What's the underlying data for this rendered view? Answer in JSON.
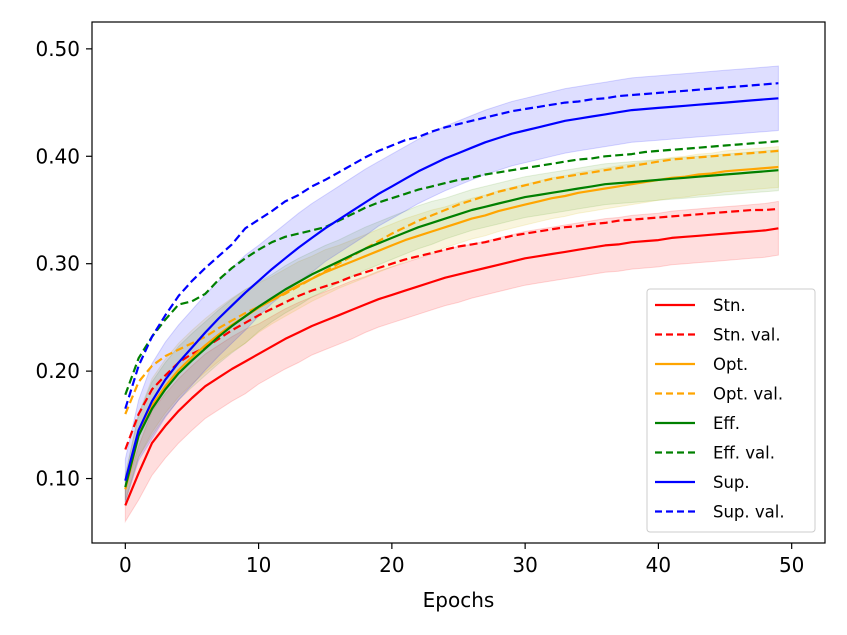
{
  "chart_data": {
    "type": "line",
    "title": "",
    "xlabel": "Epochs",
    "ylabel": "",
    "xlim": [
      -2.5,
      52.5
    ],
    "ylim": [
      0.04,
      0.525
    ],
    "x_ticks": [
      0,
      10,
      20,
      30,
      40,
      50
    ],
    "x_tick_labels": [
      "0",
      "10",
      "20",
      "30",
      "40",
      "50"
    ],
    "y_ticks": [
      0.1,
      0.2,
      0.3,
      0.4,
      0.5
    ],
    "y_tick_labels": [
      "0.10",
      "0.20",
      "0.30",
      "0.40",
      "0.50"
    ],
    "legend_position": "lower-right",
    "x": [
      0,
      1,
      2,
      3,
      4,
      5,
      6,
      7,
      8,
      9,
      10,
      11,
      12,
      13,
      14,
      15,
      16,
      17,
      18,
      19,
      20,
      21,
      22,
      23,
      24,
      25,
      26,
      27,
      28,
      29,
      30,
      31,
      32,
      33,
      34,
      35,
      36,
      37,
      38,
      39,
      40,
      41,
      42,
      43,
      44,
      45,
      46,
      47,
      48,
      49
    ],
    "series": [
      {
        "name": "Stn.",
        "color": "#ff0000",
        "dash": false,
        "band_color": "#ff0000",
        "values": [
          0.075,
          0.105,
          0.133,
          0.149,
          0.163,
          0.175,
          0.186,
          0.194,
          0.202,
          0.209,
          0.216,
          0.223,
          0.23,
          0.236,
          0.242,
          0.247,
          0.252,
          0.257,
          0.262,
          0.267,
          0.271,
          0.275,
          0.279,
          0.283,
          0.287,
          0.29,
          0.293,
          0.296,
          0.299,
          0.302,
          0.305,
          0.307,
          0.309,
          0.311,
          0.313,
          0.315,
          0.317,
          0.318,
          0.32,
          0.321,
          0.322,
          0.324,
          0.325,
          0.326,
          0.327,
          0.328,
          0.329,
          0.33,
          0.331,
          0.333
        ],
        "band": [
          0.015,
          0.025,
          0.03,
          0.03,
          0.03,
          0.03,
          0.03,
          0.03,
          0.03,
          0.03,
          0.028,
          0.028,
          0.028,
          0.028,
          0.027,
          0.027,
          0.027,
          0.027,
          0.026,
          0.026,
          0.026,
          0.026,
          0.026,
          0.026,
          0.026,
          0.026,
          0.025,
          0.025,
          0.025,
          0.025,
          0.025,
          0.025,
          0.025,
          0.025,
          0.025,
          0.025,
          0.025,
          0.025,
          0.025,
          0.025,
          0.025,
          0.025,
          0.025,
          0.025,
          0.025,
          0.025,
          0.025,
          0.025,
          0.025,
          0.025
        ]
      },
      {
        "name": "Stn. val.",
        "color": "#ff0000",
        "dash": true,
        "values": [
          0.127,
          0.16,
          0.183,
          0.196,
          0.208,
          0.216,
          0.222,
          0.23,
          0.238,
          0.245,
          0.252,
          0.258,
          0.264,
          0.27,
          0.275,
          0.279,
          0.283,
          0.288,
          0.292,
          0.296,
          0.3,
          0.304,
          0.307,
          0.31,
          0.313,
          0.316,
          0.318,
          0.32,
          0.323,
          0.326,
          0.328,
          0.33,
          0.332,
          0.334,
          0.335,
          0.337,
          0.338,
          0.34,
          0.341,
          0.342,
          0.343,
          0.344,
          0.345,
          0.346,
          0.347,
          0.348,
          0.349,
          0.35,
          0.35,
          0.351
        ]
      },
      {
        "name": "Opt.",
        "color": "#ffa500",
        "dash": false,
        "band_color": "#d4b400",
        "values": [
          0.09,
          0.14,
          0.168,
          0.186,
          0.201,
          0.213,
          0.224,
          0.234,
          0.243,
          0.251,
          0.259,
          0.266,
          0.273,
          0.28,
          0.286,
          0.292,
          0.297,
          0.302,
          0.307,
          0.312,
          0.317,
          0.322,
          0.326,
          0.33,
          0.334,
          0.338,
          0.342,
          0.345,
          0.349,
          0.352,
          0.355,
          0.358,
          0.361,
          0.363,
          0.366,
          0.368,
          0.37,
          0.372,
          0.374,
          0.376,
          0.378,
          0.38,
          0.381,
          0.383,
          0.384,
          0.386,
          0.387,
          0.388,
          0.389,
          0.39
        ],
        "band": [
          0.012,
          0.02,
          0.025,
          0.025,
          0.025,
          0.025,
          0.025,
          0.025,
          0.025,
          0.025,
          0.023,
          0.022,
          0.022,
          0.022,
          0.021,
          0.021,
          0.02,
          0.02,
          0.02,
          0.02,
          0.02,
          0.02,
          0.02,
          0.02,
          0.019,
          0.019,
          0.019,
          0.019,
          0.019,
          0.019,
          0.019,
          0.019,
          0.019,
          0.019,
          0.019,
          0.019,
          0.019,
          0.019,
          0.019,
          0.019,
          0.019,
          0.019,
          0.019,
          0.019,
          0.019,
          0.019,
          0.019,
          0.019,
          0.019,
          0.019
        ]
      },
      {
        "name": "Opt. val.",
        "color": "#ffa500",
        "dash": true,
        "values": [
          0.16,
          0.19,
          0.205,
          0.214,
          0.22,
          0.226,
          0.232,
          0.24,
          0.247,
          0.254,
          0.26,
          0.266,
          0.272,
          0.279,
          0.286,
          0.293,
          0.3,
          0.307,
          0.314,
          0.321,
          0.328,
          0.334,
          0.34,
          0.345,
          0.35,
          0.355,
          0.359,
          0.363,
          0.367,
          0.37,
          0.373,
          0.376,
          0.379,
          0.381,
          0.383,
          0.385,
          0.387,
          0.389,
          0.391,
          0.393,
          0.395,
          0.397,
          0.398,
          0.399,
          0.4,
          0.401,
          0.402,
          0.403,
          0.404,
          0.405
        ]
      },
      {
        "name": "Eff.",
        "color": "#008000",
        "dash": false,
        "band_color": "#5aa02a",
        "values": [
          0.092,
          0.14,
          0.165,
          0.183,
          0.198,
          0.21,
          0.221,
          0.232,
          0.242,
          0.251,
          0.26,
          0.268,
          0.276,
          0.283,
          0.29,
          0.296,
          0.302,
          0.308,
          0.314,
          0.319,
          0.324,
          0.329,
          0.334,
          0.338,
          0.342,
          0.346,
          0.35,
          0.353,
          0.356,
          0.359,
          0.362,
          0.364,
          0.366,
          0.368,
          0.37,
          0.372,
          0.374,
          0.375,
          0.376,
          0.377,
          0.378,
          0.379,
          0.38,
          0.381,
          0.382,
          0.383,
          0.384,
          0.385,
          0.386,
          0.387
        ],
        "band": [
          0.012,
          0.02,
          0.025,
          0.025,
          0.025,
          0.025,
          0.025,
          0.025,
          0.025,
          0.025,
          0.023,
          0.022,
          0.022,
          0.022,
          0.021,
          0.021,
          0.02,
          0.02,
          0.02,
          0.02,
          0.02,
          0.02,
          0.02,
          0.02,
          0.019,
          0.019,
          0.019,
          0.019,
          0.019,
          0.019,
          0.019,
          0.019,
          0.019,
          0.019,
          0.019,
          0.019,
          0.019,
          0.019,
          0.019,
          0.019,
          0.019,
          0.019,
          0.019,
          0.019,
          0.019,
          0.019,
          0.019,
          0.019,
          0.019,
          0.019
        ]
      },
      {
        "name": "Eff. val.",
        "color": "#008000",
        "dash": true,
        "values": [
          0.178,
          0.212,
          0.232,
          0.248,
          0.262,
          0.265,
          0.272,
          0.285,
          0.296,
          0.305,
          0.313,
          0.32,
          0.325,
          0.328,
          0.331,
          0.334,
          0.34,
          0.346,
          0.352,
          0.357,
          0.361,
          0.365,
          0.369,
          0.372,
          0.375,
          0.378,
          0.38,
          0.383,
          0.385,
          0.387,
          0.389,
          0.391,
          0.393,
          0.395,
          0.397,
          0.398,
          0.4,
          0.401,
          0.402,
          0.404,
          0.405,
          0.406,
          0.407,
          0.408,
          0.409,
          0.41,
          0.411,
          0.412,
          0.413,
          0.414
        ]
      },
      {
        "name": "Sup.",
        "color": "#0000ff",
        "dash": false,
        "band_color": "#0000ff",
        "values": [
          0.098,
          0.145,
          0.172,
          0.192,
          0.208,
          0.222,
          0.236,
          0.249,
          0.261,
          0.273,
          0.284,
          0.295,
          0.305,
          0.315,
          0.324,
          0.333,
          0.341,
          0.349,
          0.357,
          0.365,
          0.372,
          0.379,
          0.386,
          0.392,
          0.398,
          0.403,
          0.408,
          0.413,
          0.417,
          0.421,
          0.424,
          0.427,
          0.43,
          0.433,
          0.435,
          0.437,
          0.439,
          0.441,
          0.443,
          0.444,
          0.445,
          0.446,
          0.447,
          0.448,
          0.449,
          0.45,
          0.451,
          0.452,
          0.453,
          0.454
        ],
        "band": [
          0.02,
          0.028,
          0.035,
          0.035,
          0.035,
          0.035,
          0.035,
          0.035,
          0.035,
          0.035,
          0.033,
          0.032,
          0.032,
          0.032,
          0.032,
          0.031,
          0.031,
          0.031,
          0.031,
          0.03,
          0.03,
          0.03,
          0.03,
          0.03,
          0.03,
          0.03,
          0.03,
          0.03,
          0.03,
          0.03,
          0.03,
          0.03,
          0.03,
          0.03,
          0.03,
          0.03,
          0.03,
          0.03,
          0.03,
          0.03,
          0.03,
          0.03,
          0.03,
          0.03,
          0.03,
          0.03,
          0.03,
          0.03,
          0.03,
          0.03
        ]
      },
      {
        "name": "Sup. val.",
        "color": "#0000ff",
        "dash": true,
        "values": [
          0.165,
          0.205,
          0.232,
          0.252,
          0.27,
          0.284,
          0.296,
          0.307,
          0.318,
          0.333,
          0.341,
          0.349,
          0.358,
          0.364,
          0.372,
          0.378,
          0.385,
          0.392,
          0.399,
          0.405,
          0.41,
          0.415,
          0.418,
          0.423,
          0.427,
          0.43,
          0.433,
          0.436,
          0.439,
          0.442,
          0.444,
          0.446,
          0.448,
          0.45,
          0.451,
          0.453,
          0.454,
          0.456,
          0.457,
          0.458,
          0.459,
          0.46,
          0.461,
          0.462,
          0.463,
          0.464,
          0.465,
          0.466,
          0.467,
          0.468
        ]
      }
    ]
  }
}
